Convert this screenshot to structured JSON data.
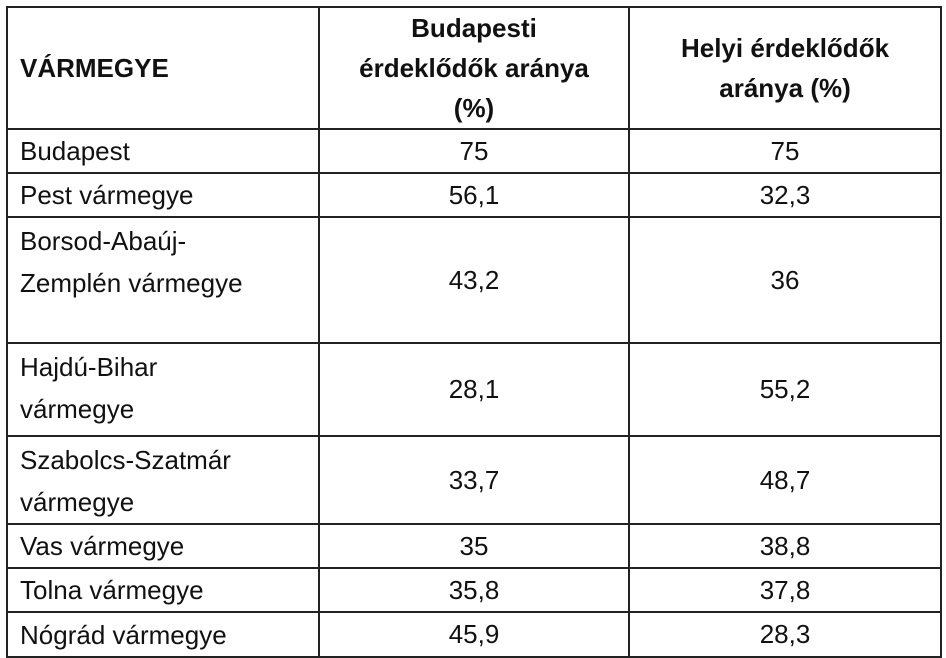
{
  "table": {
    "header": [
      [
        "VÁRMEGYE"
      ],
      [
        "Budapesti",
        "érdeklődők aránya",
        "(%)"
      ],
      [
        "Helyi érdeklődők",
        "aránya (%)"
      ]
    ],
    "rows": [
      [
        [
          "Budapest"
        ],
        "75",
        "75"
      ],
      [
        [
          "Pest vármegye"
        ],
        "56,1",
        "32,3"
      ],
      [
        [
          "Borsod-Abaúj-",
          "Zemplén vármegye"
        ],
        "43,2",
        "36"
      ],
      [
        [
          "Hajdú-Bihar",
          "vármegye"
        ],
        "28,1",
        "55,2"
      ],
      [
        [
          "Szabolcs-Szatmár",
          "vármegye"
        ],
        "33,7",
        "48,7"
      ],
      [
        [
          "Vas vármegye"
        ],
        "35",
        "38,8"
      ],
      [
        [
          "Tolna vármegye"
        ],
        "35,8",
        "37,8"
      ],
      [
        [
          "Nógrád vármegye"
        ],
        "45,9",
        "28,3"
      ]
    ]
  }
}
